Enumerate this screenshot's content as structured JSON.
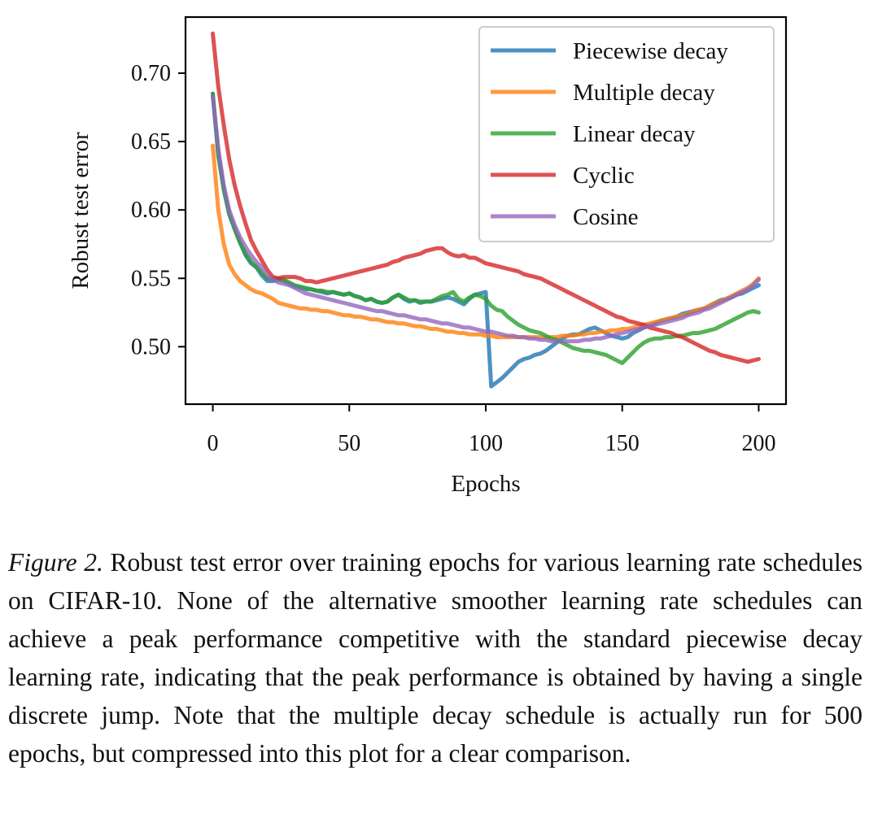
{
  "chart_data": {
    "type": "line",
    "xlabel": "Epochs",
    "ylabel": "Robust test error",
    "xlim": [
      -10,
      210
    ],
    "ylim": [
      0.458,
      0.741
    ],
    "x_ticks": [
      0,
      50,
      100,
      150,
      200
    ],
    "y_ticks": [
      0.5,
      0.55,
      0.6,
      0.65,
      0.7
    ],
    "x_tick_labels": [
      "0",
      "50",
      "100",
      "150",
      "200"
    ],
    "y_tick_labels": [
      "0.50",
      "0.55",
      "0.60",
      "0.65",
      "0.70"
    ],
    "grid": false,
    "legend_position": "top-right",
    "x": [
      0,
      2,
      4,
      6,
      8,
      10,
      12,
      14,
      16,
      18,
      20,
      22,
      24,
      26,
      28,
      30,
      32,
      34,
      36,
      38,
      40,
      42,
      44,
      46,
      48,
      50,
      52,
      54,
      56,
      58,
      60,
      62,
      64,
      66,
      68,
      70,
      72,
      74,
      76,
      78,
      80,
      82,
      84,
      86,
      88,
      90,
      92,
      94,
      96,
      98,
      100,
      102,
      104,
      106,
      108,
      110,
      112,
      114,
      116,
      118,
      120,
      122,
      124,
      126,
      128,
      130,
      132,
      134,
      136,
      138,
      140,
      142,
      144,
      146,
      148,
      150,
      152,
      154,
      156,
      158,
      160,
      162,
      164,
      166,
      168,
      170,
      172,
      174,
      176,
      178,
      180,
      182,
      184,
      186,
      188,
      190,
      192,
      194,
      196,
      198,
      200
    ],
    "series": [
      {
        "name": "Piecewise decay",
        "color": "#1f77b4",
        "values": [
          0.685,
          0.64,
          0.615,
          0.597,
          0.586,
          0.576,
          0.567,
          0.561,
          0.558,
          0.552,
          0.548,
          0.548,
          0.549,
          0.548,
          0.546,
          0.544,
          0.543,
          0.542,
          0.542,
          0.541,
          0.54,
          0.539,
          0.54,
          0.539,
          0.538,
          0.539,
          0.537,
          0.536,
          0.534,
          0.535,
          0.533,
          0.532,
          0.533,
          0.536,
          0.538,
          0.535,
          0.533,
          0.534,
          0.532,
          0.533,
          0.533,
          0.534,
          0.535,
          0.536,
          0.535,
          0.533,
          0.531,
          0.535,
          0.538,
          0.539,
          0.54,
          0.471,
          0.474,
          0.477,
          0.481,
          0.485,
          0.489,
          0.491,
          0.492,
          0.494,
          0.495,
          0.497,
          0.5,
          0.503,
          0.506,
          0.508,
          0.509,
          0.509,
          0.511,
          0.513,
          0.514,
          0.512,
          0.51,
          0.508,
          0.507,
          0.506,
          0.507,
          0.51,
          0.512,
          0.514,
          0.516,
          0.517,
          0.519,
          0.52,
          0.521,
          0.522,
          0.524,
          0.525,
          0.526,
          0.527,
          0.528,
          0.53,
          0.532,
          0.534,
          0.535,
          0.536,
          0.538,
          0.539,
          0.541,
          0.543,
          0.545
        ]
      },
      {
        "name": "Multiple decay",
        "color": "#ff7f0e",
        "values": [
          0.647,
          0.6,
          0.575,
          0.56,
          0.553,
          0.548,
          0.545,
          0.542,
          0.54,
          0.539,
          0.537,
          0.535,
          0.532,
          0.531,
          0.53,
          0.529,
          0.528,
          0.528,
          0.527,
          0.527,
          0.526,
          0.526,
          0.525,
          0.524,
          0.523,
          0.523,
          0.522,
          0.522,
          0.521,
          0.52,
          0.52,
          0.519,
          0.518,
          0.518,
          0.517,
          0.517,
          0.516,
          0.515,
          0.515,
          0.514,
          0.513,
          0.513,
          0.512,
          0.511,
          0.511,
          0.51,
          0.51,
          0.509,
          0.509,
          0.509,
          0.508,
          0.508,
          0.507,
          0.507,
          0.507,
          0.507,
          0.507,
          0.507,
          0.507,
          0.507,
          0.507,
          0.507,
          0.507,
          0.507,
          0.508,
          0.508,
          0.508,
          0.509,
          0.509,
          0.51,
          0.51,
          0.511,
          0.511,
          0.512,
          0.512,
          0.513,
          0.513,
          0.514,
          0.515,
          0.516,
          0.517,
          0.518,
          0.519,
          0.52,
          0.521,
          0.522,
          0.523,
          0.524,
          0.526,
          0.527,
          0.528,
          0.53,
          0.532,
          0.533,
          0.535,
          0.537,
          0.539,
          0.541,
          0.543,
          0.546,
          0.55
        ]
      },
      {
        "name": "Linear decay",
        "color": "#2ca02c",
        "values": [
          0.685,
          0.64,
          0.615,
          0.597,
          0.586,
          0.576,
          0.568,
          0.562,
          0.558,
          0.554,
          0.55,
          0.55,
          0.55,
          0.549,
          0.547,
          0.545,
          0.544,
          0.543,
          0.542,
          0.541,
          0.541,
          0.54,
          0.54,
          0.539,
          0.538,
          0.539,
          0.537,
          0.536,
          0.534,
          0.535,
          0.533,
          0.532,
          0.533,
          0.536,
          0.538,
          0.536,
          0.534,
          0.534,
          0.533,
          0.533,
          0.533,
          0.535,
          0.537,
          0.538,
          0.54,
          0.535,
          0.533,
          0.536,
          0.538,
          0.537,
          0.535,
          0.53,
          0.527,
          0.526,
          0.522,
          0.519,
          0.516,
          0.514,
          0.512,
          0.511,
          0.51,
          0.508,
          0.506,
          0.505,
          0.503,
          0.501,
          0.499,
          0.498,
          0.497,
          0.497,
          0.496,
          0.495,
          0.494,
          0.492,
          0.49,
          0.488,
          0.492,
          0.496,
          0.5,
          0.503,
          0.505,
          0.506,
          0.506,
          0.507,
          0.507,
          0.508,
          0.508,
          0.509,
          0.51,
          0.51,
          0.511,
          0.512,
          0.513,
          0.515,
          0.517,
          0.519,
          0.521,
          0.523,
          0.525,
          0.526,
          0.525
        ]
      },
      {
        "name": "Cyclic",
        "color": "#d62728",
        "values": [
          0.729,
          0.69,
          0.662,
          0.637,
          0.618,
          0.603,
          0.59,
          0.578,
          0.57,
          0.563,
          0.556,
          0.551,
          0.55,
          0.551,
          0.551,
          0.551,
          0.55,
          0.548,
          0.548,
          0.547,
          0.548,
          0.549,
          0.55,
          0.551,
          0.552,
          0.553,
          0.554,
          0.555,
          0.556,
          0.557,
          0.558,
          0.559,
          0.56,
          0.562,
          0.563,
          0.565,
          0.566,
          0.567,
          0.568,
          0.57,
          0.571,
          0.572,
          0.572,
          0.569,
          0.567,
          0.566,
          0.567,
          0.565,
          0.565,
          0.563,
          0.561,
          0.56,
          0.559,
          0.558,
          0.557,
          0.556,
          0.555,
          0.553,
          0.552,
          0.551,
          0.55,
          0.548,
          0.546,
          0.544,
          0.542,
          0.54,
          0.538,
          0.536,
          0.534,
          0.532,
          0.53,
          0.528,
          0.526,
          0.524,
          0.522,
          0.521,
          0.519,
          0.518,
          0.517,
          0.516,
          0.514,
          0.513,
          0.512,
          0.511,
          0.51,
          0.508,
          0.507,
          0.505,
          0.503,
          0.501,
          0.499,
          0.497,
          0.496,
          0.494,
          0.493,
          0.492,
          0.491,
          0.49,
          0.489,
          0.49,
          0.491
        ]
      },
      {
        "name": "Cosine",
        "color": "#9467bd",
        "values": [
          0.683,
          0.645,
          0.618,
          0.6,
          0.589,
          0.58,
          0.573,
          0.567,
          0.562,
          0.558,
          0.552,
          0.549,
          0.547,
          0.546,
          0.545,
          0.543,
          0.541,
          0.539,
          0.538,
          0.537,
          0.536,
          0.535,
          0.534,
          0.533,
          0.532,
          0.531,
          0.53,
          0.529,
          0.528,
          0.527,
          0.526,
          0.526,
          0.525,
          0.524,
          0.523,
          0.523,
          0.522,
          0.521,
          0.52,
          0.52,
          0.519,
          0.518,
          0.517,
          0.517,
          0.516,
          0.515,
          0.514,
          0.514,
          0.513,
          0.512,
          0.511,
          0.511,
          0.51,
          0.509,
          0.508,
          0.508,
          0.507,
          0.507,
          0.506,
          0.506,
          0.505,
          0.505,
          0.504,
          0.504,
          0.504,
          0.504,
          0.504,
          0.504,
          0.505,
          0.505,
          0.506,
          0.506,
          0.507,
          0.508,
          0.509,
          0.51,
          0.511,
          0.512,
          0.513,
          0.514,
          0.515,
          0.516,
          0.517,
          0.518,
          0.519,
          0.52,
          0.521,
          0.523,
          0.524,
          0.525,
          0.527,
          0.528,
          0.53,
          0.532,
          0.534,
          0.536,
          0.538,
          0.54,
          0.542,
          0.545,
          0.549
        ]
      }
    ]
  },
  "caption": {
    "label": "Figure 2.",
    "text": " Robust test error over training epochs for various learning rate schedules on CIFAR-10. None of the alternative smoother learning rate schedules can achieve a peak performance competitive with the standard piecewise decay learning rate, indicating that the peak performance is obtained by having a single discrete jump. Note that the multiple decay schedule is actually run for 500 epochs, but compressed into this plot for a clear comparison."
  }
}
